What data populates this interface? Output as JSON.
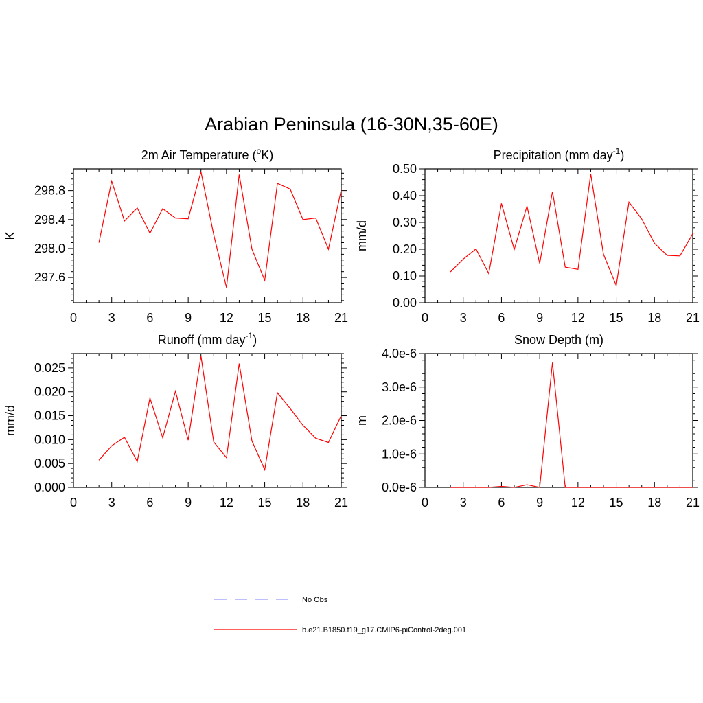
{
  "figure_title": "Arabian Peninsula (16-30N,35-60E)",
  "legend": {
    "items": [
      {
        "label": "No Obs",
        "color": "#9999ff",
        "style": "dashed"
      },
      {
        "label": "b.e21.B1850.f19_g17.CMIP6-piControl-2deg.001",
        "color": "#ff0000",
        "style": "solid"
      }
    ]
  },
  "chart_data": [
    {
      "type": "line",
      "title": "2m Air Temperature (",
      "title_sup": "o",
      "title_end": "K)",
      "xlabel": "",
      "ylabel": "K",
      "xlim": [
        0,
        21
      ],
      "ylim": [
        297.25,
        299.1
      ],
      "xticks": [
        0,
        3,
        6,
        9,
        12,
        15,
        18,
        21
      ],
      "xtick_labels": [
        "0",
        "3",
        "6",
        "9",
        "12",
        "15",
        "18",
        "21"
      ],
      "yticks": [
        297.6,
        298.0,
        298.4,
        298.8
      ],
      "ytick_labels": [
        "297.6",
        "298.0",
        "298.4",
        "298.8"
      ],
      "series": [
        {
          "color": "#ff0000",
          "x": [
            2,
            3,
            4,
            5,
            6,
            7,
            8,
            9,
            10,
            11,
            12,
            13,
            14,
            15,
            16,
            17,
            18,
            19,
            20,
            21
          ],
          "y": [
            298.08,
            298.93,
            298.38,
            298.56,
            298.21,
            298.55,
            298.42,
            298.41,
            299.06,
            298.19,
            297.46,
            299.02,
            297.99,
            297.56,
            298.9,
            298.82,
            298.4,
            298.42,
            297.99,
            298.81
          ]
        }
      ]
    },
    {
      "type": "line",
      "title": "Precipitation (mm day",
      "title_sup": "-1",
      "title_end": ")",
      "xlabel": "",
      "ylabel": "mm/d",
      "xlim": [
        0,
        21
      ],
      "ylim": [
        0,
        0.5
      ],
      "xticks": [
        0,
        3,
        6,
        9,
        12,
        15,
        18,
        21
      ],
      "xtick_labels": [
        "0",
        "3",
        "6",
        "9",
        "12",
        "15",
        "18",
        "21"
      ],
      "yticks": [
        0,
        0.1,
        0.2,
        0.3,
        0.4,
        0.5
      ],
      "ytick_labels": [
        "0.00",
        "0.10",
        "0.20",
        "0.30",
        "0.40",
        "0.50"
      ],
      "series": [
        {
          "color": "#ff0000",
          "x": [
            2,
            3,
            4,
            5,
            6,
            7,
            8,
            9,
            10,
            11,
            12,
            13,
            14,
            15,
            16,
            17,
            18,
            19,
            20,
            21
          ],
          "y": [
            0.115,
            0.163,
            0.201,
            0.109,
            0.371,
            0.199,
            0.361,
            0.147,
            0.415,
            0.133,
            0.125,
            0.481,
            0.181,
            0.064,
            0.376,
            0.313,
            0.222,
            0.177,
            0.175,
            0.258
          ]
        }
      ]
    },
    {
      "type": "line",
      "title": "Runoff (mm day",
      "title_sup": "-1",
      "title_end": ")",
      "xlabel": "",
      "ylabel": "mm/d",
      "xlim": [
        0,
        21
      ],
      "ylim": [
        0,
        0.028
      ],
      "xticks": [
        0,
        3,
        6,
        9,
        12,
        15,
        18,
        21
      ],
      "xtick_labels": [
        "0",
        "3",
        "6",
        "9",
        "12",
        "15",
        "18",
        "21"
      ],
      "yticks": [
        0,
        0.005,
        0.01,
        0.015,
        0.02,
        0.025
      ],
      "ytick_labels": [
        "0.000",
        "0.005",
        "0.010",
        "0.015",
        "0.020",
        "0.025"
      ],
      "series": [
        {
          "color": "#ff0000",
          "x": [
            2,
            3,
            4,
            5,
            6,
            7,
            8,
            9,
            10,
            11,
            12,
            13,
            14,
            15,
            16,
            17,
            18,
            19,
            20,
            21
          ],
          "y": [
            0.0057,
            0.0087,
            0.0105,
            0.0054,
            0.0187,
            0.0104,
            0.0201,
            0.0099,
            0.0275,
            0.0095,
            0.0062,
            0.0259,
            0.0097,
            0.0037,
            0.0198,
            0.0165,
            0.013,
            0.0103,
            0.0094,
            0.015
          ]
        }
      ]
    },
    {
      "type": "line",
      "title": "Snow Depth (m)",
      "title_sup": "",
      "title_end": "",
      "xlabel": "",
      "ylabel": "m",
      "xlim": [
        0,
        21
      ],
      "ylim": [
        0,
        4e-06
      ],
      "xticks": [
        0,
        3,
        6,
        9,
        12,
        15,
        18,
        21
      ],
      "xtick_labels": [
        "0",
        "3",
        "6",
        "9",
        "12",
        "15",
        "18",
        "21"
      ],
      "yticks": [
        0,
        1e-06,
        2e-06,
        3e-06,
        4e-06
      ],
      "ytick_labels": [
        "0.0e-6",
        "1.0e-6",
        "2.0e-6",
        "3.0e-6",
        "4.0e-6"
      ],
      "series": [
        {
          "color": "#ff0000",
          "x": [
            2,
            3,
            4,
            5,
            6,
            7,
            8,
            9,
            10,
            11,
            12,
            13,
            14,
            15,
            16,
            17,
            18,
            19,
            20,
            21
          ],
          "y": [
            0,
            0,
            0,
            0,
            3e-08,
            0,
            8e-08,
            0,
            3.73e-06,
            0,
            0,
            0,
            0,
            0,
            0,
            0,
            0,
            0,
            0,
            0
          ]
        }
      ]
    }
  ]
}
